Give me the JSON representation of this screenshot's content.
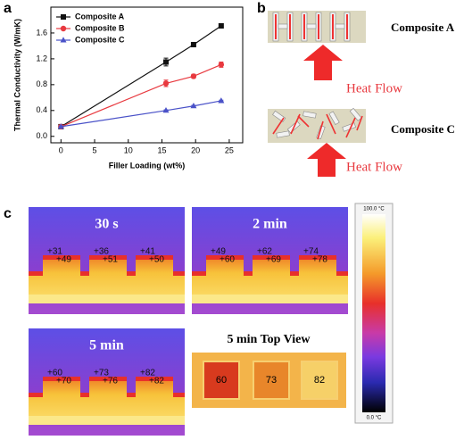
{
  "chart_data": {
    "type": "line",
    "panel_label": "a",
    "xlabel": "Filler Loading (wt%)",
    "ylabel": "Thermal Conductivity (W/mK)",
    "x": [
      0,
      15.6,
      19.7,
      23.8
    ],
    "series": [
      {
        "name": "Composite A",
        "color": "#111111",
        "marker": "square",
        "values": [
          0.15,
          1.15,
          1.42,
          1.71
        ],
        "errors": [
          0.01,
          0.06,
          0.03,
          0.03
        ]
      },
      {
        "name": "Composite B",
        "color": "#e8393f",
        "marker": "circle",
        "values": [
          0.15,
          0.82,
          0.93,
          1.11
        ],
        "errors": [
          0.01,
          0.05,
          0.03,
          0.04
        ]
      },
      {
        "name": "Composite C",
        "color": "#4a52c8",
        "marker": "triangle",
        "values": [
          0.15,
          0.4,
          0.47,
          0.55
        ],
        "errors": [
          0.01,
          0.01,
          0.01,
          0.01
        ]
      }
    ],
    "xlim": [
      -1.5,
      27
    ],
    "ylim": [
      -0.1,
      2.0
    ],
    "xticks": [
      0,
      5,
      10,
      15,
      20,
      25
    ],
    "yticks": [
      {
        "value": 0,
        "label": "0.0"
      },
      0.4,
      0.8,
      1.2,
      1.6
    ],
    "legend": "upper left"
  },
  "diagram": {
    "panel_label": "b",
    "items": [
      {
        "label": "Composite A",
        "arrow_label": "Heat Flow"
      },
      {
        "label": "Composite C",
        "arrow_label": "Heat Flow"
      }
    ]
  },
  "thermal": {
    "panel_label": "c",
    "images": [
      {
        "title": "30 s",
        "readings": [
          "+31",
          "+49",
          "+36",
          "+51",
          "+41",
          "+50"
        ]
      },
      {
        "title": "2 min",
        "readings": [
          "+49",
          "+60",
          "+62",
          "+69",
          "+74",
          "+78"
        ]
      },
      {
        "title": "5 min",
        "readings": [
          "+60",
          "+70",
          "+73",
          "+76",
          "+82",
          "+82"
        ]
      }
    ],
    "top_view": {
      "title": "5 min Top View",
      "readings": [
        "60",
        "73",
        "82"
      ]
    },
    "scale": {
      "max_label": "100.0 °C",
      "min_label": "0.0 °C"
    }
  }
}
